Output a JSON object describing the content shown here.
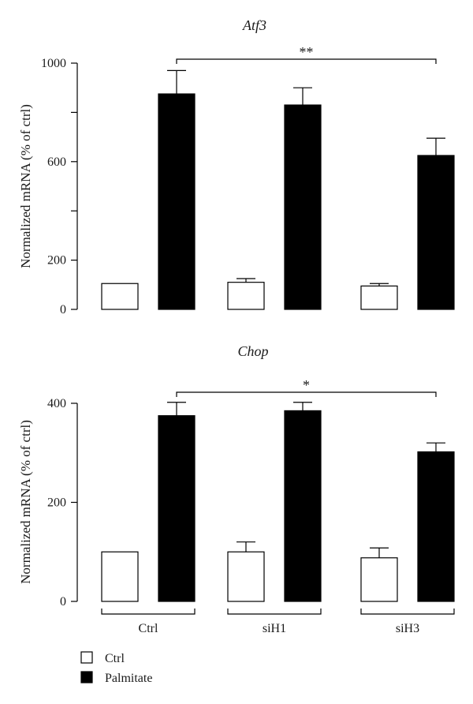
{
  "chart_data": [
    {
      "type": "bar",
      "title": "Atf3",
      "ylabel": "Normalized mRNA (% of ctrl)",
      "categories": [
        "Ctrl",
        "siH1",
        "siH3"
      ],
      "ylim": [
        0,
        1000
      ],
      "yticks": [
        "0",
        "200",
        "600",
        "1000"
      ],
      "series": [
        {
          "name": "Ctrl",
          "values": [
            105,
            110,
            95
          ],
          "errors": [
            0,
            15,
            10
          ],
          "color": "#ffffff"
        },
        {
          "name": "Palmitate",
          "values": [
            875,
            830,
            625
          ],
          "errors": [
            95,
            70,
            70
          ],
          "color": "#000000"
        }
      ],
      "significance": {
        "from": "Ctrl",
        "to": "siH3",
        "label": "**"
      }
    },
    {
      "type": "bar",
      "title": "Chop",
      "ylabel": "Normalized mRNA (% of ctrl)",
      "categories": [
        "Ctrl",
        "siH1",
        "siH3"
      ],
      "ylim": [
        0,
        400
      ],
      "yticks": [
        "0",
        "200",
        "400"
      ],
      "series": [
        {
          "name": "Ctrl",
          "values": [
            100,
            100,
            88
          ],
          "errors": [
            0,
            20,
            20
          ],
          "color": "#ffffff"
        },
        {
          "name": "Palmitate",
          "values": [
            375,
            385,
            302
          ],
          "errors": [
            27,
            17,
            18
          ],
          "color": "#000000"
        }
      ],
      "significance": {
        "from": "Ctrl",
        "to": "siH3",
        "label": "*"
      }
    }
  ],
  "legend": [
    {
      "label": "Ctrl",
      "color": "#ffffff"
    },
    {
      "label": "Palmitate",
      "color": "#000000"
    }
  ]
}
